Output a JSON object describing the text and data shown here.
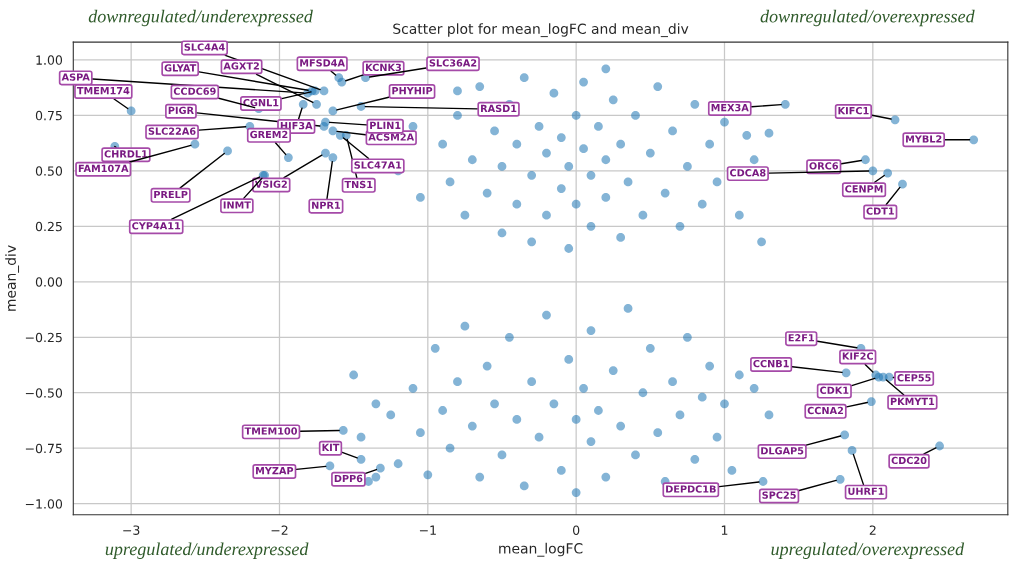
{
  "chart_data": {
    "type": "scatter",
    "title": "Scatter plot for mean_logFC and mean_div",
    "xlabel": "mean_logFC",
    "ylabel": "mean_div",
    "xlim": [
      -3.39,
      2.91
    ],
    "ylim": [
      -1.05,
      1.08
    ],
    "xticks": [
      {
        "value": -3,
        "label": "−3"
      },
      {
        "value": -2,
        "label": "−2"
      },
      {
        "value": -1,
        "label": "−1"
      },
      0,
      1,
      2
    ],
    "yticks": [
      {
        "value": -1,
        "label": "−1.00"
      },
      {
        "value": -0.75,
        "label": "−0.75"
      },
      {
        "value": -0.5,
        "label": "−0.50"
      },
      {
        "value": -0.25,
        "label": "−0.25"
      },
      {
        "value": 0,
        "label": "0.00"
      },
      {
        "value": 0.25,
        "label": "0.25"
      },
      {
        "value": 0.5,
        "label": "0.50"
      },
      {
        "value": 0.75,
        "label": "0.75"
      },
      {
        "value": 1,
        "label": "1.00"
      }
    ],
    "grid": true,
    "marker": "circle",
    "series": [
      {
        "color": "#1f77b4",
        "x": [
          -0.8,
          -0.9,
          -0.85,
          -0.8,
          -0.75,
          -0.7,
          -0.65,
          -0.6,
          -0.55,
          -0.5,
          -0.5,
          -0.45,
          -0.4,
          -0.4,
          -0.35,
          -0.3,
          -0.3,
          -0.25,
          -0.2,
          -0.2,
          -0.15,
          -0.1,
          -0.1,
          -0.05,
          -0.05,
          0.0,
          0.0,
          0.05,
          0.05,
          0.1,
          0.1,
          0.15,
          0.2,
          0.2,
          0.2,
          0.25,
          0.3,
          0.3,
          0.35,
          0.4,
          0.45,
          0.5,
          0.55,
          0.6,
          0.65,
          0.7,
          0.75,
          0.8,
          0.85,
          0.9,
          0.95,
          1.0,
          1.1,
          1.15,
          1.2,
          1.25,
          1.3,
          -1.1,
          -1.2,
          -1.05,
          -1.5,
          -1.45,
          -1.35,
          -1.25,
          -1.2,
          -1.1,
          -1.05,
          -1.0,
          -0.95,
          -0.9,
          -0.85,
          -0.8,
          -0.75,
          -0.7,
          -0.65,
          -0.6,
          -0.55,
          -0.5,
          -0.45,
          -0.4,
          -0.35,
          -0.3,
          -0.25,
          -0.2,
          -0.15,
          -0.1,
          -0.05,
          0.0,
          0.0,
          0.05,
          0.1,
          0.1,
          0.15,
          0.2,
          0.25,
          0.3,
          0.35,
          0.4,
          0.45,
          0.5,
          0.55,
          0.6,
          0.65,
          0.7,
          0.75,
          0.8,
          0.85,
          0.9,
          0.95,
          1.0,
          1.05,
          1.1,
          1.2,
          1.3,
          -1.35,
          -1.4,
          -1.7,
          -1.75,
          -1.78,
          -1.81,
          -1.76,
          -2.14,
          -3.0,
          -1.7,
          -1.84,
          -2.2,
          -1.94,
          -3.11,
          -2.57,
          -2.35,
          -1.69,
          -2.1,
          -2.11,
          -1.64,
          -1.55,
          -1.59,
          -1.64,
          -1.69,
          -1.64,
          -1.45,
          -1.58,
          -1.6,
          -1.42,
          1.41,
          2.15,
          2.68,
          1.95,
          2.0,
          2.1,
          2.2,
          -1.57,
          -1.45,
          -1.66,
          -1.32,
          1.92,
          1.82,
          2.02,
          2.04,
          2.11,
          2.07,
          1.99,
          1.81,
          1.86,
          2.45,
          1.78,
          1.26
        ],
        "values": [
          0.86,
          0.62,
          0.45,
          0.75,
          0.3,
          0.55,
          0.88,
          0.4,
          0.68,
          0.22,
          0.52,
          0.8,
          0.35,
          0.62,
          0.92,
          0.18,
          0.48,
          0.7,
          0.3,
          0.58,
          0.85,
          0.42,
          0.65,
          0.15,
          0.52,
          0.75,
          0.35,
          0.6,
          0.9,
          0.25,
          0.48,
          0.7,
          0.38,
          0.55,
          0.96,
          0.82,
          0.2,
          0.62,
          0.45,
          0.75,
          0.3,
          0.58,
          0.88,
          0.4,
          0.68,
          0.25,
          0.52,
          0.8,
          0.35,
          0.62,
          0.45,
          0.72,
          0.3,
          0.66,
          0.55,
          0.18,
          0.67,
          0.7,
          0.5,
          0.38,
          -0.42,
          -0.7,
          -0.55,
          -0.6,
          -0.82,
          -0.48,
          -0.68,
          -0.87,
          -0.3,
          -0.58,
          -0.75,
          -0.45,
          -0.2,
          -0.65,
          -0.88,
          -0.38,
          -0.55,
          -0.78,
          -0.25,
          -0.62,
          -0.92,
          -0.45,
          -0.7,
          -0.15,
          -0.55,
          -0.85,
          -0.35,
          -0.62,
          -0.95,
          -0.48,
          -0.72,
          -0.22,
          -0.58,
          -0.88,
          -0.4,
          -0.65,
          -0.12,
          -0.78,
          -0.5,
          -0.3,
          -0.68,
          -0.9,
          -0.45,
          -0.6,
          -0.25,
          -0.8,
          -0.52,
          -0.38,
          -0.7,
          -0.55,
          -0.85,
          -0.42,
          -0.48,
          -0.6,
          -0.88,
          -0.9,
          0.86,
          0.8,
          0.86,
          0.85,
          0.86,
          0.78,
          0.77,
          0.7,
          0.8,
          0.7,
          0.56,
          0.61,
          0.62,
          0.59,
          0.58,
          0.48,
          0.48,
          0.56,
          0.66,
          0.66,
          0.68,
          0.72,
          0.77,
          0.79,
          0.9,
          0.92,
          0.92,
          0.8,
          0.73,
          0.64,
          0.55,
          0.5,
          0.49,
          0.44,
          -0.67,
          -0.8,
          -0.83,
          -0.84,
          -0.3,
          -0.41,
          -0.42,
          -0.43,
          -0.43,
          -0.43,
          -0.54,
          -0.69,
          -0.76,
          -0.74,
          -0.89,
          -0.9
        ]
      }
    ],
    "annotations": [
      "downregulated/underexpressed",
      "downregulated/overexpressed",
      "upregulated/underexpressed",
      "upregulated/overexpressed",
      {
        "text": "SLC4A4",
        "x": -1.7,
        "y": 0.86
      },
      {
        "text": "AGXT2",
        "x": -1.75,
        "y": 0.8
      },
      {
        "text": "GLYAT",
        "x": -1.78,
        "y": 0.86
      },
      {
        "text": "ASPA",
        "x": -1.81,
        "y": 0.85
      },
      {
        "text": "CGNL1",
        "x": -1.76,
        "y": 0.86
      },
      {
        "text": "CCDC69",
        "x": -2.14,
        "y": 0.78
      },
      {
        "text": "TMEM174",
        "x": -3.0,
        "y": 0.77
      },
      {
        "text": "PIGR",
        "x": -1.7,
        "y": 0.7
      },
      {
        "text": "HIF3A",
        "x": -1.84,
        "y": 0.8
      },
      {
        "text": "SLC22A6",
        "x": -2.2,
        "y": 0.7
      },
      {
        "text": "GREM2",
        "x": -1.94,
        "y": 0.56
      },
      {
        "text": "CHRDL1",
        "x": -3.11,
        "y": 0.61
      },
      {
        "text": "FAM107A",
        "x": -2.57,
        "y": 0.62
      },
      {
        "text": "PRELP",
        "x": -2.35,
        "y": 0.59
      },
      {
        "text": "VSIG2",
        "x": -1.69,
        "y": 0.58
      },
      {
        "text": "INMT",
        "x": -2.1,
        "y": 0.48
      },
      {
        "text": "CYP4A11",
        "x": -2.11,
        "y": 0.48
      },
      {
        "text": "NPR1",
        "x": -1.64,
        "y": 0.56
      },
      {
        "text": "TNS1",
        "x": -1.55,
        "y": 0.66
      },
      {
        "text": "SLC47A1",
        "x": -1.59,
        "y": 0.66
      },
      {
        "text": "ACSM2A",
        "x": -1.64,
        "y": 0.68
      },
      {
        "text": "PLIN1",
        "x": -1.69,
        "y": 0.72
      },
      {
        "text": "PHYHIP",
        "x": -1.64,
        "y": 0.77
      },
      {
        "text": "RASD1",
        "x": -1.45,
        "y": 0.79
      },
      {
        "text": "KCNK3",
        "x": -1.58,
        "y": 0.9
      },
      {
        "text": "MFSD4A",
        "x": -1.6,
        "y": 0.92
      },
      {
        "text": "SLC36A2",
        "x": -1.42,
        "y": 0.92
      },
      {
        "text": "MEX3A",
        "x": 1.41,
        "y": 0.8
      },
      {
        "text": "KIFC1",
        "x": 2.15,
        "y": 0.73
      },
      {
        "text": "MYBL2",
        "x": 2.68,
        "y": 0.64
      },
      {
        "text": "ORC6",
        "x": 1.95,
        "y": 0.55
      },
      {
        "text": "CDCA8",
        "x": 2.0,
        "y": 0.5
      },
      {
        "text": "CENPM",
        "x": 2.1,
        "y": 0.49
      },
      {
        "text": "CDT1",
        "x": 2.2,
        "y": 0.44
      },
      {
        "text": "TMEM100",
        "x": -1.57,
        "y": -0.67
      },
      {
        "text": "KIT",
        "x": -1.45,
        "y": -0.8
      },
      {
        "text": "MYZAP",
        "x": -1.66,
        "y": -0.83
      },
      {
        "text": "DPP6",
        "x": -1.32,
        "y": -0.84
      },
      {
        "text": "E2F1",
        "x": 1.92,
        "y": -0.3
      },
      {
        "text": "CCNB1",
        "x": 1.82,
        "y": -0.41
      },
      {
        "text": "KIF2C",
        "x": 2.02,
        "y": -0.42
      },
      {
        "text": "CDK1",
        "x": 2.04,
        "y": -0.43
      },
      {
        "text": "CEP55",
        "x": 2.11,
        "y": -0.43
      },
      {
        "text": "PKMYT1",
        "x": 2.07,
        "y": -0.43
      },
      {
        "text": "CCNA2",
        "x": 1.99,
        "y": -0.54
      },
      {
        "text": "DLGAP5",
        "x": 1.81,
        "y": -0.69
      },
      {
        "text": "UHRF1",
        "x": 1.86,
        "y": -0.76
      },
      {
        "text": "CDC20",
        "x": 2.45,
        "y": -0.74
      },
      {
        "text": "SPC25",
        "x": 1.78,
        "y": -0.89
      },
      {
        "text": "DEPDC1B",
        "x": 1.26,
        "y": -0.9
      }
    ]
  }
}
